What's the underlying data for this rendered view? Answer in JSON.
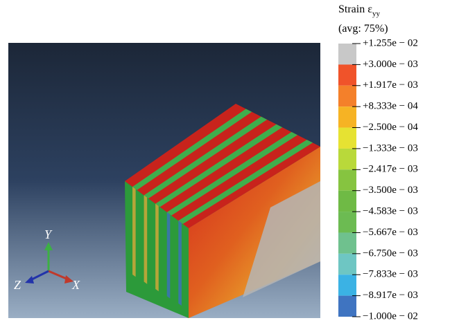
{
  "legend": {
    "title_main": "Strain ε",
    "title_sub": "yy",
    "subtitle": "(avg: 75%)",
    "labels": [
      "+1.255e − 02",
      "+3.000e − 03",
      "+1.917e − 03",
      "+8.333e − 04",
      "−2.500e − 04",
      "−1.333e − 03",
      "−2.417e − 03",
      "−3.500e − 03",
      "−4.583e − 03",
      "−5.667e − 03",
      "−6.750e − 03",
      "−7.833e − 03",
      "−8.917e − 03",
      "−1.000e − 02"
    ],
    "colors": [
      "#c8c8c8",
      "#e8231f",
      "#f0532a",
      "#f4802a",
      "#f6b324",
      "#e6e232",
      "#b9d93a",
      "#86c440",
      "#6fba45",
      "#6cbb52",
      "#6fc18e",
      "#6ec6c3",
      "#3bb2e4",
      "#3f74c1",
      "#2f4f9f"
    ]
  },
  "triad": {
    "y": "Y",
    "x": "X",
    "z": "Z"
  }
}
